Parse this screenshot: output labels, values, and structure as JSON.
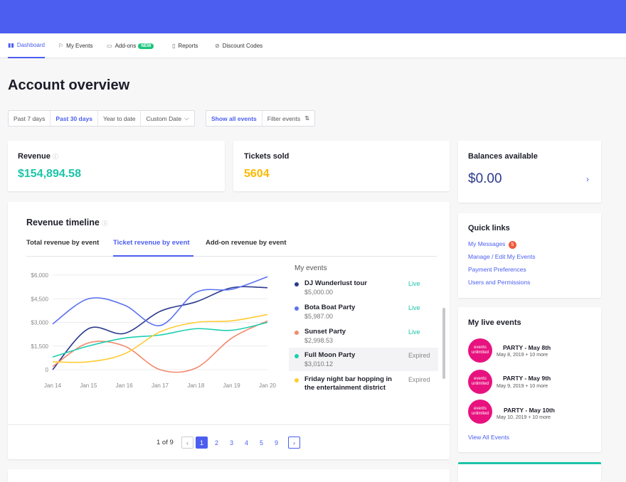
{
  "nav": [
    {
      "label": "Dashboard",
      "icon": "bar-chart-icon"
    },
    {
      "label": "My Events",
      "icon": "flag-icon"
    },
    {
      "label": "Add-ons",
      "icon": "ticket-icon",
      "badge": "NEW"
    },
    {
      "label": "Reports",
      "icon": "document-icon"
    },
    {
      "label": "Discount Codes",
      "icon": "percent-icon"
    }
  ],
  "page_title": "Account overview",
  "date_filters": [
    "Past 7 days",
    "Past 30 days",
    "Year to date",
    "Custom Date"
  ],
  "event_filters": {
    "show_all": "Show all events",
    "filter": "Filter events"
  },
  "revenue": {
    "label": "Revenue",
    "value": "$154,894.58"
  },
  "tickets": {
    "label": "Tickets sold",
    "value": "5604"
  },
  "balance": {
    "label": "Balances available",
    "value": "$0.00"
  },
  "quick_links": {
    "title": "Quick links",
    "messages": "My Messages",
    "messages_count": "5",
    "manage": "Manage / Edit My Events",
    "payment": "Payment Preferences",
    "users": "Users and Permissions"
  },
  "live_events": {
    "title": "My live events",
    "view_all": "View All Events",
    "items": [
      {
        "logo": "events unlimited",
        "title": "PARTY  - May 8th",
        "sub": "May 8, 2019 + 10 more"
      },
      {
        "logo": "events unlimited",
        "title": "PARTY  - May 9th",
        "sub": "May 9, 2019 + 10 more"
      },
      {
        "logo": "events unlimited",
        "title": "PARTY  - May 10th",
        "sub": "May 10, 2019 + 10 more"
      }
    ]
  },
  "timeline": {
    "title": "Revenue timeline",
    "tabs": [
      "Total revenue by event",
      "Ticket revenue by event",
      "Add-on revenue by event"
    ],
    "events_heading": "My events",
    "events": [
      {
        "name": "DJ Wunderlust tour",
        "amount": "$5,000.00",
        "status": "Live",
        "color": "#2b3a8c"
      },
      {
        "name": "Bota Boat Party",
        "amount": "$5,987.00",
        "status": "Live",
        "color": "#5b73f0"
      },
      {
        "name": "Sunset Party",
        "amount": "$2,998.53",
        "status": "Live",
        "color": "#f28a6d"
      },
      {
        "name": "Full Moon Party",
        "amount": "$3,010.12",
        "status": "Expired",
        "color": "#1ccfb0"
      },
      {
        "name": "Friday night bar hopping in the entertainment district",
        "amount": "",
        "status": "Expired",
        "color": "#ffcc33"
      }
    ],
    "pagination": {
      "label": "1 of 9",
      "pages": [
        "1",
        "2",
        "3",
        "4",
        "5",
        "9"
      ]
    }
  },
  "chart_data": {
    "type": "line",
    "x": [
      "Jan 14",
      "Jan 15",
      "Jan 16",
      "Jan 17",
      "Jan 18",
      "Jan 19",
      "Jan 20"
    ],
    "yticks": [
      "$6,000",
      "$4,500",
      "$3,000",
      "$1,500",
      "0"
    ],
    "ylim": [
      0,
      6000
    ],
    "series": [
      {
        "name": "DJ Wunderlust tour",
        "color": "#2b3a8c",
        "values": [
          0,
          2600,
          2300,
          3700,
          4300,
          5200,
          5200
        ]
      },
      {
        "name": "Bota Boat Party",
        "color": "#5b73f0",
        "values": [
          2900,
          4500,
          4100,
          2800,
          4900,
          5100,
          5900
        ]
      },
      {
        "name": "Sunset Party",
        "color": "#f28a6d",
        "values": [
          200,
          1700,
          1500,
          0,
          100,
          2000,
          3100
        ]
      },
      {
        "name": "Full Moon Party",
        "color": "#1ccfb0",
        "values": [
          800,
          1500,
          2000,
          2200,
          2600,
          2500,
          3000
        ]
      },
      {
        "name": "Friday night bar hopping in the entertainment district",
        "color": "#ffcc33",
        "values": [
          500,
          500,
          1000,
          2400,
          3000,
          3100,
          3500
        ]
      }
    ]
  }
}
